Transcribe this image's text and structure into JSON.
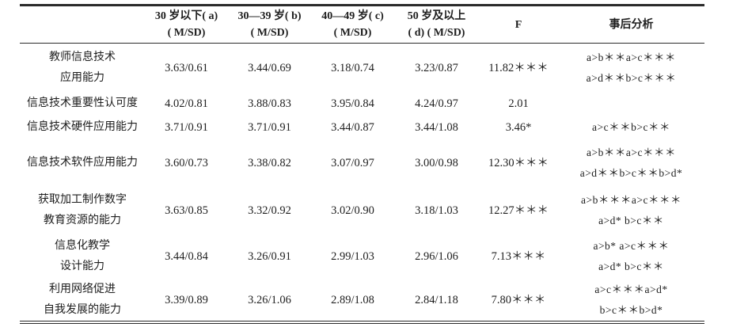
{
  "table": {
    "headers": {
      "col0": "",
      "col1": "30 岁以下( a)\n( M/SD)",
      "col2": "30—39 岁( b)\n( M/SD)",
      "col3": "40—49 岁( c)\n( M/SD)",
      "col4": "50 岁及以上\n( d) ( M/SD)",
      "col5": "F",
      "col6": "事后分析"
    },
    "rows": [
      {
        "label": "教师信息技术\n应用能力",
        "v1": "3.63/0.61",
        "v2": "3.44/0.69",
        "v3": "3.18/0.74",
        "v4": "3.23/0.87",
        "f": "11.82＊＊＊",
        "posthoc": "a>b＊＊a>c＊＊＊\na>d＊＊b>c＊＊＊"
      },
      {
        "label": "信息技术重要性认可度",
        "v1": "4.02/0.81",
        "v2": "3.88/0.83",
        "v3": "3.95/0.84",
        "v4": "4.24/0.97",
        "f": "2.01",
        "posthoc": ""
      },
      {
        "label": "信息技术硬件应用能力",
        "v1": "3.71/0.91",
        "v2": "3.71/0.91",
        "v3": "3.44/0.87",
        "v4": "3.44/1.08",
        "f": "3.46*",
        "posthoc": "a>c＊＊b>c＊＊"
      },
      {
        "label": "信息技术软件应用能力",
        "v1": "3.60/0.73",
        "v2": "3.38/0.82",
        "v3": "3.07/0.97",
        "v4": "3.00/0.98",
        "f": "12.30＊＊＊",
        "posthoc": "a>b＊＊a>c＊＊＊\na>d＊＊b>c＊＊b>d*"
      },
      {
        "label": "获取加工制作数字\n教育资源的能力",
        "v1": "3.63/0.85",
        "v2": "3.32/0.92",
        "v3": "3.02/0.90",
        "v4": "3.18/1.03",
        "f": "12.27＊＊＊",
        "posthoc": "a>b＊＊＊a>c＊＊＊\na>d* b>c＊＊"
      },
      {
        "label": "信息化教学\n设计能力",
        "v1": "3.44/0.84",
        "v2": "3.26/0.91",
        "v3": "2.99/1.03",
        "v4": "2.96/1.06",
        "f": "7.13＊＊＊",
        "posthoc": "a>b* a>c＊＊＊\na>d* b>c＊＊"
      },
      {
        "label": "利用网络促进\n自我发展的能力",
        "v1": "3.39/0.89",
        "v2": "3.26/1.06",
        "v3": "2.89/1.08",
        "v4": "2.84/1.18",
        "f": "7.80＊＊＊",
        "posthoc": "a>c＊＊＊a>d*\nb>c＊＊b>d*"
      }
    ]
  }
}
